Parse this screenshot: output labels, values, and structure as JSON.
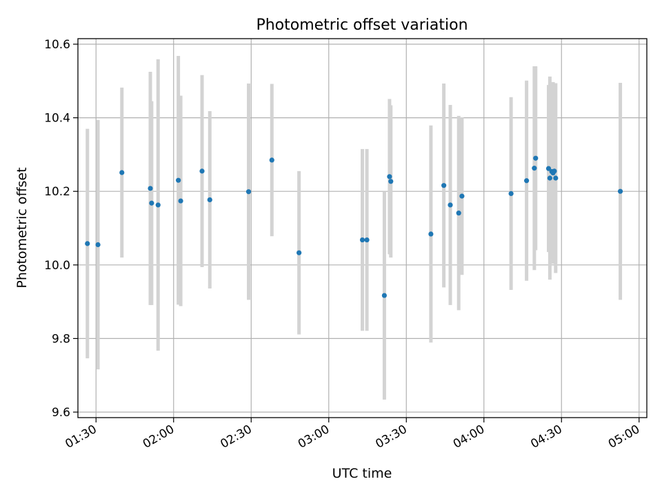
{
  "chart_data": {
    "type": "scatter",
    "title": "Photometric offset variation",
    "xlabel": "UTC time",
    "ylabel": "Photometric offset",
    "x_ticks": [
      "01:30",
      "02:00",
      "02:30",
      "03:00",
      "03:30",
      "04:00",
      "04:30",
      "05:00"
    ],
    "y_ticks": [
      "9.6",
      "9.8",
      "10.0",
      "10.2",
      "10.4",
      "10.6"
    ],
    "xlim": [
      "01:23",
      "05:03"
    ],
    "ylim": [
      9.585,
      10.615
    ],
    "grid": true,
    "marker_color": "#1f77b4",
    "errorbar_color": "#d3d3d3",
    "points": [
      {
        "t": "01:26:40",
        "y": 10.058,
        "err": 0.312
      },
      {
        "t": "01:30:45",
        "y": 10.055,
        "err": 0.339
      },
      {
        "t": "01:40:00",
        "y": 10.251,
        "err": 0.231
      },
      {
        "t": "01:51:00",
        "y": 10.208,
        "err": 0.317
      },
      {
        "t": "01:51:30",
        "y": 10.168,
        "err": 0.277
      },
      {
        "t": "01:54:00",
        "y": 10.163,
        "err": 0.396
      },
      {
        "t": "02:01:50",
        "y": 10.23,
        "err": 0.338
      },
      {
        "t": "02:02:45",
        "y": 10.174,
        "err": 0.286
      },
      {
        "t": "02:11:00",
        "y": 10.255,
        "err": 0.261
      },
      {
        "t": "02:14:00",
        "y": 10.177,
        "err": 0.241
      },
      {
        "t": "02:29:00",
        "y": 10.199,
        "err": 0.294
      },
      {
        "t": "02:38:00",
        "y": 10.285,
        "err": 0.207
      },
      {
        "t": "02:48:30",
        "y": 10.033,
        "err": 0.222
      },
      {
        "t": "03:13:00",
        "y": 10.068,
        "err": 0.247
      },
      {
        "t": "03:14:45",
        "y": 10.068,
        "err": 0.247
      },
      {
        "t": "03:21:30",
        "y": 9.917,
        "err": 0.283
      },
      {
        "t": "03:23:30",
        "y": 10.24,
        "err": 0.211
      },
      {
        "t": "03:24:00",
        "y": 10.227,
        "err": 0.207
      },
      {
        "t": "03:39:30",
        "y": 10.084,
        "err": 0.295
      },
      {
        "t": "03:44:30",
        "y": 10.216,
        "err": 0.277
      },
      {
        "t": "03:47:00",
        "y": 10.163,
        "err": 0.272
      },
      {
        "t": "03:50:15",
        "y": 10.141,
        "err": 0.264
      },
      {
        "t": "03:51:30",
        "y": 10.187,
        "err": 0.214
      },
      {
        "t": "04:10:30",
        "y": 10.194,
        "err": 0.262
      },
      {
        "t": "04:16:30",
        "y": 10.229,
        "err": 0.272
      },
      {
        "t": "04:19:30",
        "y": 10.263,
        "err": 0.277
      },
      {
        "t": "04:20:00",
        "y": 10.29,
        "err": 0.25
      },
      {
        "t": "04:25:00",
        "y": 10.262,
        "err": 0.227
      },
      {
        "t": "04:25:30",
        "y": 10.236,
        "err": 0.276
      },
      {
        "t": "04:26:15",
        "y": 10.254,
        "err": 0.236
      },
      {
        "t": "04:26:45",
        "y": 10.25,
        "err": 0.247
      },
      {
        "t": "04:27:15",
        "y": 10.255,
        "err": 0.231
      },
      {
        "t": "04:27:45",
        "y": 10.236,
        "err": 0.258
      },
      {
        "t": "04:52:45",
        "y": 10.2,
        "err": 0.295
      }
    ]
  }
}
